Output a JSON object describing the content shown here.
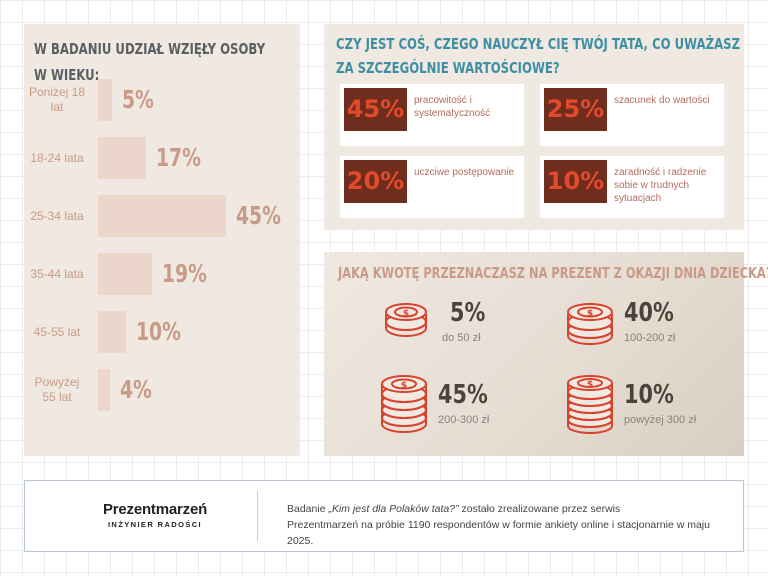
{
  "age_panel": {
    "title_line1": "W BADANIU UDZIAŁ WZIĘŁY OSOBY",
    "title_line2": "W WIEKU:"
  },
  "values_panel": {
    "title_line1": "CZY JEST COŚ, CZEGO NAUCZYŁ CIĘ TWÓJ TATA, CO UWAŻASZ",
    "title_line2": "ZA SZCZEGÓLNIE WARTOŚCIOWE?",
    "cards": [
      {
        "pct": "45%",
        "text": "pracowitość i systematyczność"
      },
      {
        "pct": "25%",
        "text": "szacunek do wartości"
      },
      {
        "pct": "20%",
        "text": "uczciwe postępowanie"
      },
      {
        "pct": "10%",
        "text": "zaradność i radzenie sobie w trudnych sytuacjach"
      }
    ]
  },
  "gift_panel": {
    "title": "JAKĄ KWOTĘ PRZEZNACZASZ NA PREZENT Z OKAZJI DNIA DZIECKA?",
    "items": [
      {
        "pct": "5%",
        "label": "do 50 zł"
      },
      {
        "pct": "40%",
        "label": "100-200 zł"
      },
      {
        "pct": "45%",
        "label": "200-300 zł"
      },
      {
        "pct": "10%",
        "label": "powyżej 300 zł"
      }
    ]
  },
  "footer": {
    "logo_name": "Prezentmarzeń",
    "logo_tagline": "INŻYNIER RADOŚCI",
    "text_prefix": "Badanie ",
    "text_quote": "„Kim jest dla Polaków tata?”",
    "text_line1_rest": " zostało zrealizowane przez serwis",
    "text_line2": "Prezentmarzeń na próbie 1190 respondentów w formie ankiety online i stacjonarnie w maju 2025."
  },
  "colors": {
    "accent_teal": "#3e8fa3",
    "dark_brown": "#6e2d1d",
    "red": "#e34a2b",
    "salmon": "#c99a85",
    "bar": "#ecd6cc"
  },
  "chart_data": [
    {
      "type": "bar",
      "categories": [
        "Poniżej 18 lat",
        "18-24 lata",
        "25-34 lata",
        "35-44 lata",
        "45-55 lat",
        "Powyżej 55 lat"
      ],
      "values": [
        5,
        17,
        45,
        19,
        10,
        4
      ],
      "value_labels": [
        "5%",
        "17%",
        "45%",
        "19%",
        "10%",
        "4%"
      ],
      "orientation": "horizontal",
      "title": "W BADANIU UDZIAŁ WZIĘŁY OSOBY W WIEKU:"
    }
  ]
}
